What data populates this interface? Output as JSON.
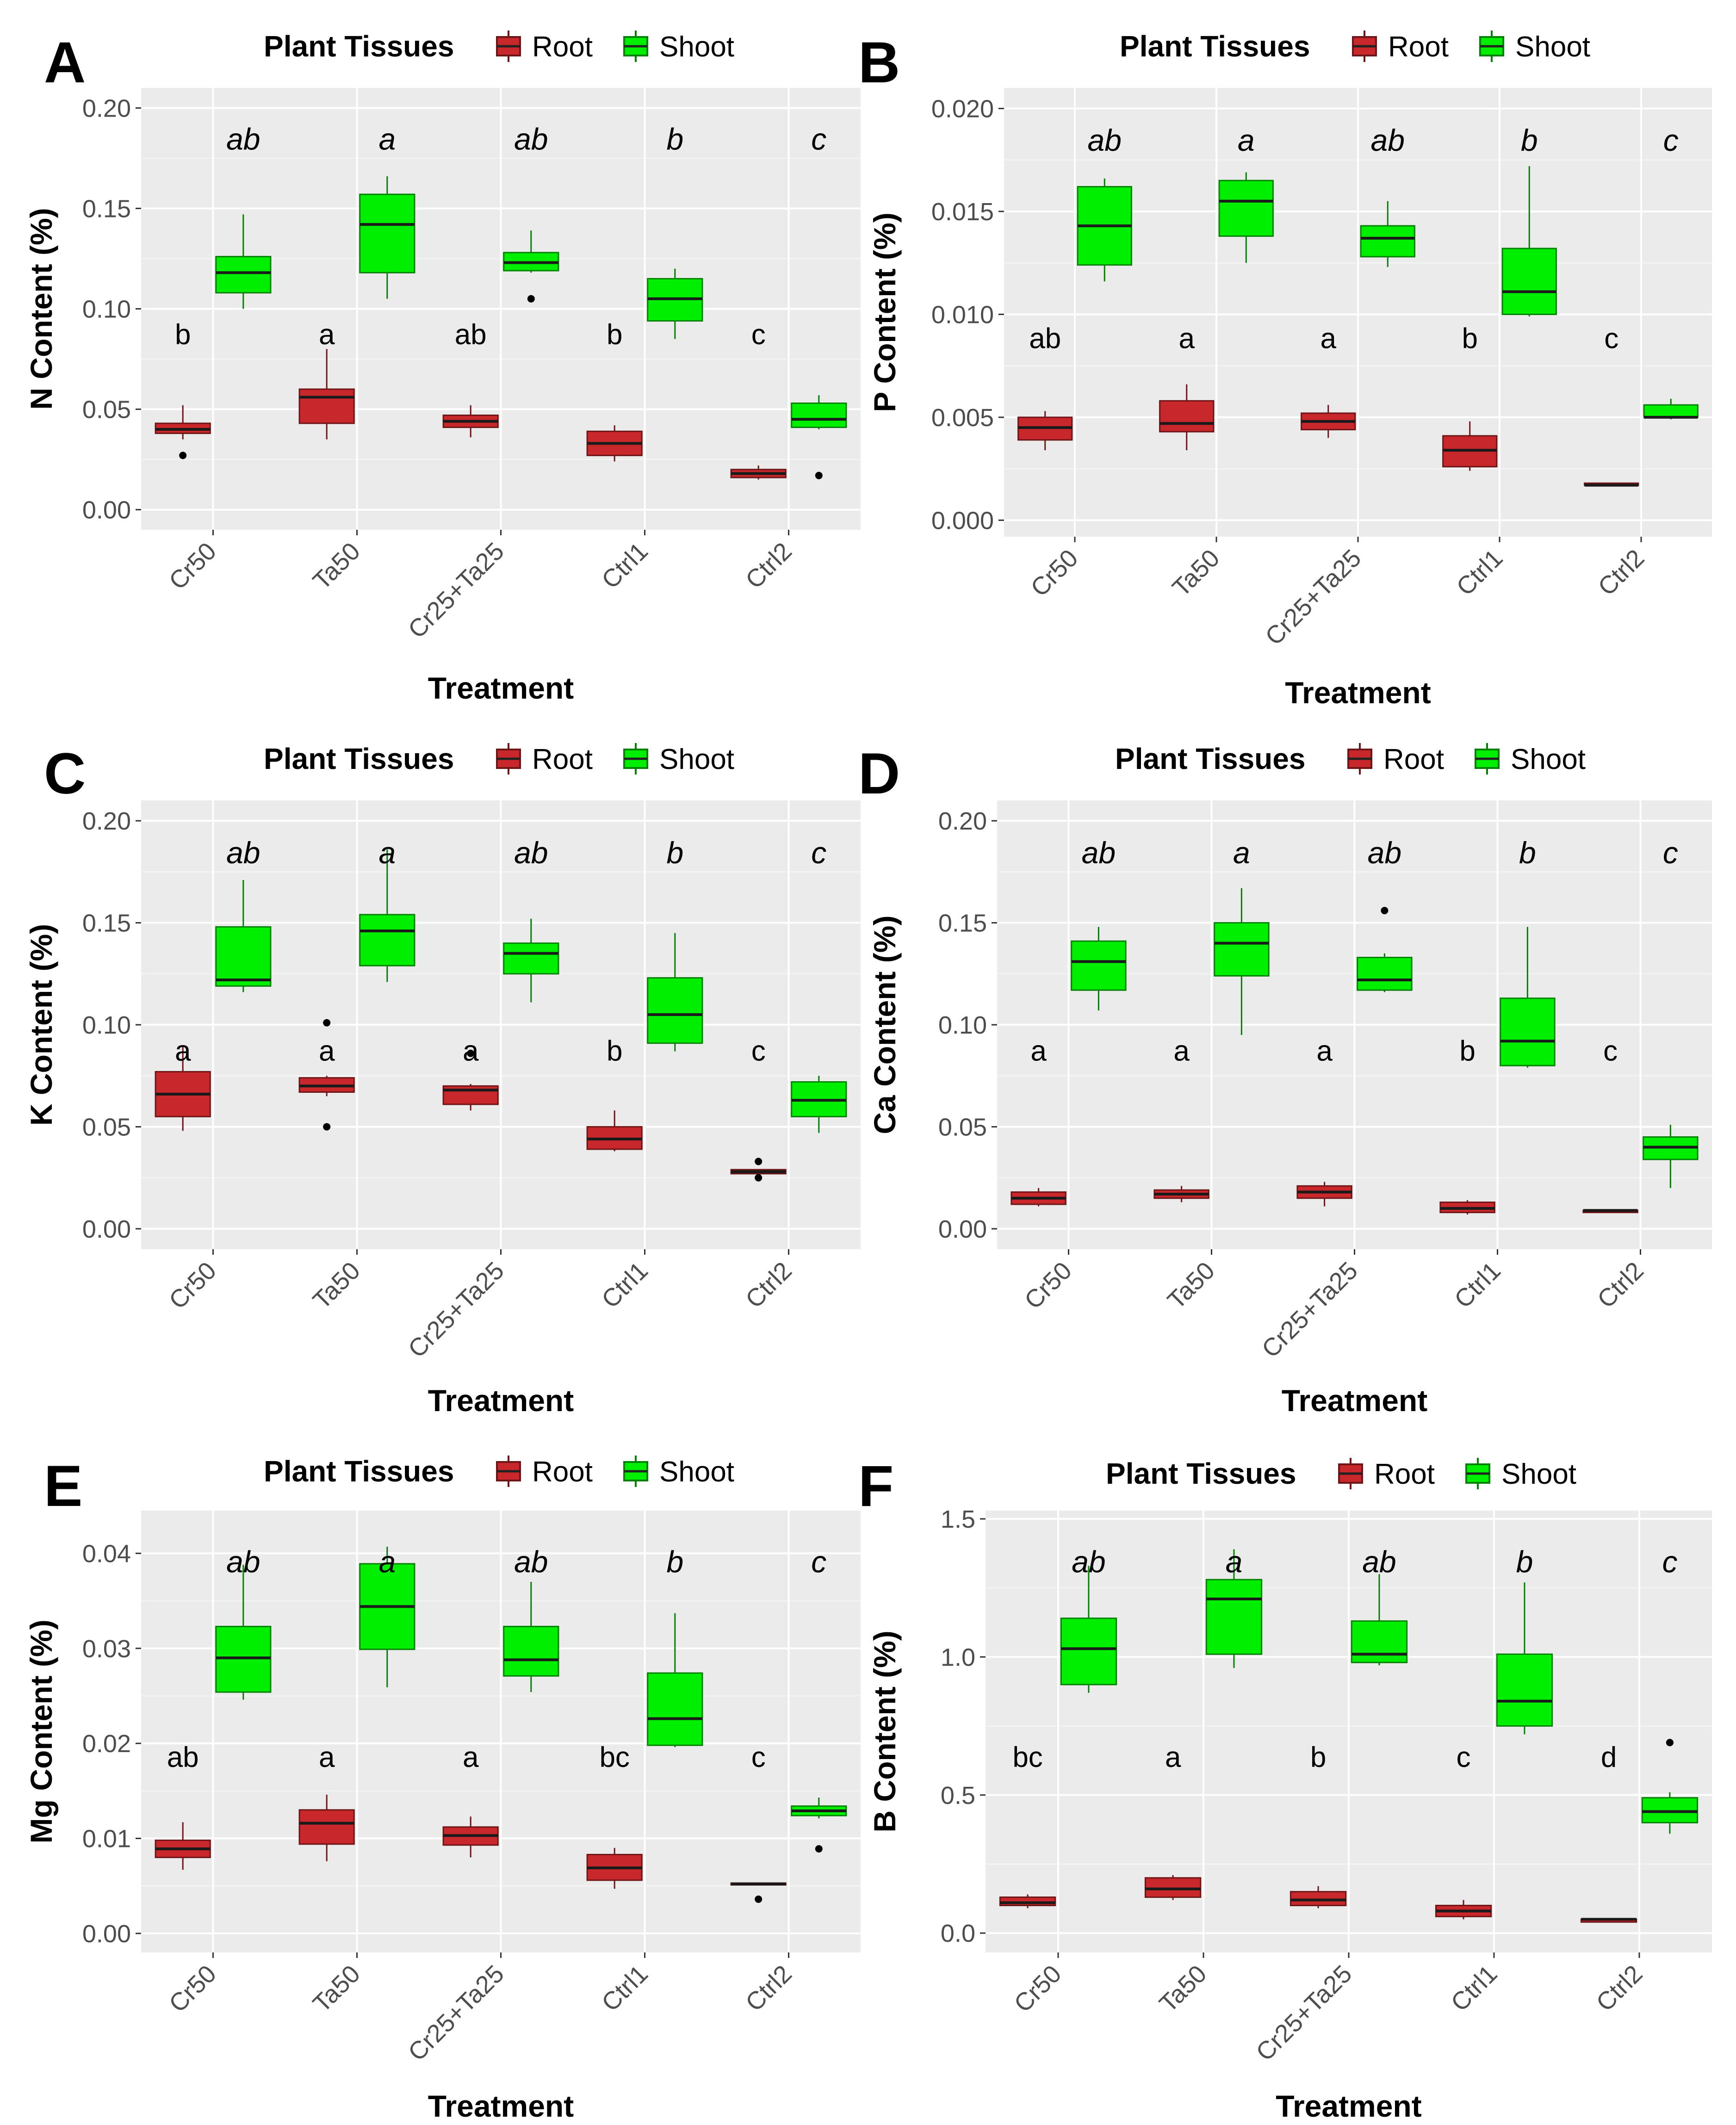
{
  "chart_data": [
    {
      "type": "boxplot",
      "panel": "A",
      "legend": {
        "title": "Plant Tissues",
        "entries": [
          "Root",
          "Shoot"
        ]
      },
      "colors": {
        "Root": "#c8282b",
        "Shoot": "#00ee00"
      },
      "xlabel": "Treatment",
      "ylabel": "N Content (%)",
      "ylim": [
        -0.01,
        0.21
      ],
      "yticks": [
        "0.00",
        "0.05",
        "0.10",
        "0.15",
        "0.20"
      ],
      "categories": [
        "Cr50",
        "Ta50",
        "Cr25+Ta25",
        "Ctrl1",
        "Ctrl2"
      ],
      "series": [
        {
          "name": "Root",
          "sig": [
            "b",
            "a",
            "ab",
            "b",
            "c"
          ],
          "boxes": [
            {
              "min": 0.035,
              "q1": 0.038,
              "median": 0.04,
              "q3": 0.043,
              "max": 0.052,
              "outliers": [
                0.027
              ]
            },
            {
              "min": 0.035,
              "q1": 0.043,
              "median": 0.056,
              "q3": 0.06,
              "max": 0.08,
              "outliers": []
            },
            {
              "min": 0.036,
              "q1": 0.041,
              "median": 0.044,
              "q3": 0.047,
              "max": 0.052,
              "outliers": []
            },
            {
              "min": 0.024,
              "q1": 0.027,
              "median": 0.033,
              "q3": 0.039,
              "max": 0.042,
              "outliers": []
            },
            {
              "min": 0.015,
              "q1": 0.016,
              "median": 0.018,
              "q3": 0.02,
              "max": 0.022,
              "outliers": []
            }
          ]
        },
        {
          "name": "Shoot",
          "sig": [
            "ab",
            "a",
            "ab",
            "b",
            "c"
          ],
          "boxes": [
            {
              "min": 0.1,
              "q1": 0.108,
              "median": 0.118,
              "q3": 0.126,
              "max": 0.147,
              "outliers": []
            },
            {
              "min": 0.105,
              "q1": 0.118,
              "median": 0.142,
              "q3": 0.157,
              "max": 0.166,
              "outliers": []
            },
            {
              "min": 0.118,
              "q1": 0.119,
              "median": 0.123,
              "q3": 0.128,
              "max": 0.139,
              "outliers": [
                0.105
              ]
            },
            {
              "min": 0.085,
              "q1": 0.094,
              "median": 0.105,
              "q3": 0.115,
              "max": 0.12,
              "outliers": []
            },
            {
              "min": 0.04,
              "q1": 0.041,
              "median": 0.045,
              "q3": 0.053,
              "max": 0.057,
              "outliers": [
                0.017
              ]
            }
          ]
        }
      ]
    },
    {
      "type": "boxplot",
      "panel": "B",
      "legend": {
        "title": "Plant Tissues",
        "entries": [
          "Root",
          "Shoot"
        ]
      },
      "colors": {
        "Root": "#c8282b",
        "Shoot": "#00ee00"
      },
      "xlabel": "Treatment",
      "ylabel": "P Content (%)",
      "ylim": [
        -0.0008,
        0.021
      ],
      "yticks": [
        "0.000",
        "0.005",
        "0.010",
        "0.015",
        "0.020"
      ],
      "categories": [
        "Cr50",
        "Ta50",
        "Cr25+Ta25",
        "Ctrl1",
        "Ctrl2"
      ],
      "series": [
        {
          "name": "Root",
          "sig": [
            "ab",
            "a",
            "a",
            "b",
            "c"
          ],
          "boxes": [
            {
              "min": 0.0034,
              "q1": 0.0039,
              "median": 0.0045,
              "q3": 0.005,
              "max": 0.0053,
              "outliers": []
            },
            {
              "min": 0.0034,
              "q1": 0.0043,
              "median": 0.0047,
              "q3": 0.0058,
              "max": 0.0066,
              "outliers": []
            },
            {
              "min": 0.004,
              "q1": 0.0044,
              "median": 0.0048,
              "q3": 0.0052,
              "max": 0.0056,
              "outliers": []
            },
            {
              "min": 0.0024,
              "q1": 0.0026,
              "median": 0.0034,
              "q3": 0.0041,
              "max": 0.0048,
              "outliers": []
            },
            {
              "min": 0.0017,
              "q1": 0.0017,
              "median": 0.0017,
              "q3": 0.0018,
              "max": 0.0018,
              "outliers": []
            }
          ]
        },
        {
          "name": "Shoot",
          "sig": [
            "ab",
            "a",
            "ab",
            "b",
            "c"
          ],
          "boxes": [
            {
              "min": 0.0116,
              "q1": 0.0124,
              "median": 0.0143,
              "q3": 0.0162,
              "max": 0.0166,
              "outliers": []
            },
            {
              "min": 0.0125,
              "q1": 0.0138,
              "median": 0.0155,
              "q3": 0.0165,
              "max": 0.0169,
              "outliers": []
            },
            {
              "min": 0.0123,
              "q1": 0.0128,
              "median": 0.0137,
              "q3": 0.0143,
              "max": 0.0155,
              "outliers": []
            },
            {
              "min": 0.0099,
              "q1": 0.01,
              "median": 0.0111,
              "q3": 0.0132,
              "max": 0.0172,
              "outliers": []
            },
            {
              "min": 0.0049,
              "q1": 0.005,
              "median": 0.005,
              "q3": 0.0056,
              "max": 0.0059,
              "outliers": []
            }
          ]
        }
      ]
    },
    {
      "type": "boxplot",
      "panel": "C",
      "legend": {
        "title": "Plant Tissues",
        "entries": [
          "Root",
          "Shoot"
        ]
      },
      "colors": {
        "Root": "#c8282b",
        "Shoot": "#00ee00"
      },
      "xlabel": "Treatment",
      "ylabel": "K Content (%)",
      "ylim": [
        -0.01,
        0.21
      ],
      "yticks": [
        "0.00",
        "0.05",
        "0.10",
        "0.15",
        "0.20"
      ],
      "categories": [
        "Cr50",
        "Ta50",
        "Cr25+Ta25",
        "Ctrl1",
        "Ctrl2"
      ],
      "series": [
        {
          "name": "Root",
          "sig": [
            "a",
            "a",
            "a",
            "b",
            "c"
          ],
          "boxes": [
            {
              "min": 0.048,
              "q1": 0.055,
              "median": 0.066,
              "q3": 0.077,
              "max": 0.09,
              "outliers": []
            },
            {
              "min": 0.065,
              "q1": 0.067,
              "median": 0.07,
              "q3": 0.074,
              "max": 0.075,
              "outliers": [
                0.101,
                0.05
              ]
            },
            {
              "min": 0.058,
              "q1": 0.061,
              "median": 0.068,
              "q3": 0.07,
              "max": 0.071,
              "outliers": [
                0.086
              ]
            },
            {
              "min": 0.038,
              "q1": 0.039,
              "median": 0.044,
              "q3": 0.05,
              "max": 0.058,
              "outliers": []
            },
            {
              "min": 0.027,
              "q1": 0.027,
              "median": 0.028,
              "q3": 0.029,
              "max": 0.029,
              "outliers": [
                0.033,
                0.025
              ]
            }
          ]
        },
        {
          "name": "Shoot",
          "sig": [
            "ab",
            "a",
            "ab",
            "b",
            "c"
          ],
          "boxes": [
            {
              "min": 0.116,
              "q1": 0.119,
              "median": 0.122,
              "q3": 0.148,
              "max": 0.171,
              "outliers": []
            },
            {
              "min": 0.121,
              "q1": 0.129,
              "median": 0.146,
              "q3": 0.154,
              "max": 0.186,
              "outliers": []
            },
            {
              "min": 0.111,
              "q1": 0.125,
              "median": 0.135,
              "q3": 0.14,
              "max": 0.152,
              "outliers": []
            },
            {
              "min": 0.087,
              "q1": 0.091,
              "median": 0.105,
              "q3": 0.123,
              "max": 0.145,
              "outliers": []
            },
            {
              "min": 0.047,
              "q1": 0.055,
              "median": 0.063,
              "q3": 0.072,
              "max": 0.075,
              "outliers": []
            }
          ]
        }
      ]
    },
    {
      "type": "boxplot",
      "panel": "D",
      "legend": {
        "title": "Plant Tissues",
        "entries": [
          "Root",
          "Shoot"
        ]
      },
      "colors": {
        "Root": "#c8282b",
        "Shoot": "#00ee00"
      },
      "xlabel": "Treatment",
      "ylabel": "Ca Content (%)",
      "ylim": [
        -0.01,
        0.21
      ],
      "yticks": [
        "0.00",
        "0.05",
        "0.10",
        "0.15",
        "0.20"
      ],
      "categories": [
        "Cr50",
        "Ta50",
        "Cr25+Ta25",
        "Ctrl1",
        "Ctrl2"
      ],
      "series": [
        {
          "name": "Root",
          "sig": [
            "a",
            "a",
            "a",
            "b",
            "c"
          ],
          "boxes": [
            {
              "min": 0.011,
              "q1": 0.012,
              "median": 0.015,
              "q3": 0.018,
              "max": 0.02,
              "outliers": []
            },
            {
              "min": 0.013,
              "q1": 0.015,
              "median": 0.017,
              "q3": 0.019,
              "max": 0.021,
              "outliers": []
            },
            {
              "min": 0.011,
              "q1": 0.015,
              "median": 0.018,
              "q3": 0.021,
              "max": 0.023,
              "outliers": []
            },
            {
              "min": 0.007,
              "q1": 0.008,
              "median": 0.01,
              "q3": 0.013,
              "max": 0.014,
              "outliers": []
            },
            {
              "min": 0.008,
              "q1": 0.008,
              "median": 0.009,
              "q3": 0.009,
              "max": 0.009,
              "outliers": []
            }
          ]
        },
        {
          "name": "Shoot",
          "sig": [
            "ab",
            "a",
            "ab",
            "b",
            "c"
          ],
          "boxes": [
            {
              "min": 0.107,
              "q1": 0.117,
              "median": 0.131,
              "q3": 0.141,
              "max": 0.148,
              "outliers": []
            },
            {
              "min": 0.095,
              "q1": 0.124,
              "median": 0.14,
              "q3": 0.15,
              "max": 0.167,
              "outliers": []
            },
            {
              "min": 0.116,
              "q1": 0.117,
              "median": 0.122,
              "q3": 0.133,
              "max": 0.135,
              "outliers": [
                0.156
              ]
            },
            {
              "min": 0.079,
              "q1": 0.08,
              "median": 0.092,
              "q3": 0.113,
              "max": 0.148,
              "outliers": []
            },
            {
              "min": 0.02,
              "q1": 0.034,
              "median": 0.04,
              "q3": 0.045,
              "max": 0.051,
              "outliers": []
            }
          ]
        }
      ]
    },
    {
      "type": "boxplot",
      "panel": "E",
      "legend": {
        "title": "Plant Tissues",
        "entries": [
          "Root",
          "Shoot"
        ]
      },
      "colors": {
        "Root": "#c8282b",
        "Shoot": "#00ee00"
      },
      "xlabel": "Treatment",
      "ylabel": "Mg Content (%)",
      "ylim": [
        -0.002,
        0.0445
      ],
      "yticks": [
        "0.00",
        "0.01",
        "0.02",
        "0.03",
        "0.04"
      ],
      "categories": [
        "Cr50",
        "Ta50",
        "Cr25+Ta25",
        "Ctrl1",
        "Ctrl2"
      ],
      "series": [
        {
          "name": "Root",
          "sig": [
            "ab",
            "a",
            "a",
            "bc",
            "c"
          ],
          "boxes": [
            {
              "min": 0.0067,
              "q1": 0.008,
              "median": 0.0089,
              "q3": 0.0098,
              "max": 0.0117,
              "outliers": []
            },
            {
              "min": 0.0076,
              "q1": 0.0094,
              "median": 0.0116,
              "q3": 0.013,
              "max": 0.0146,
              "outliers": []
            },
            {
              "min": 0.008,
              "q1": 0.0093,
              "median": 0.0103,
              "q3": 0.0112,
              "max": 0.0123,
              "outliers": []
            },
            {
              "min": 0.0047,
              "q1": 0.0056,
              "median": 0.0069,
              "q3": 0.0083,
              "max": 0.009,
              "outliers": []
            },
            {
              "min": 0.0052,
              "q1": 0.0052,
              "median": 0.0052,
              "q3": 0.0053,
              "max": 0.0053,
              "outliers": [
                0.0036
              ]
            }
          ]
        },
        {
          "name": "Shoot",
          "sig": [
            "ab",
            "a",
            "ab",
            "b",
            "c"
          ],
          "boxes": [
            {
              "min": 0.0246,
              "q1": 0.0254,
              "median": 0.029,
              "q3": 0.0323,
              "max": 0.0388,
              "outliers": []
            },
            {
              "min": 0.0259,
              "q1": 0.0299,
              "median": 0.0344,
              "q3": 0.0389,
              "max": 0.0407,
              "outliers": []
            },
            {
              "min": 0.0254,
              "q1": 0.0271,
              "median": 0.0288,
              "q3": 0.0323,
              "max": 0.037,
              "outliers": []
            },
            {
              "min": 0.0196,
              "q1": 0.0198,
              "median": 0.0226,
              "q3": 0.0274,
              "max": 0.0337,
              "outliers": []
            },
            {
              "min": 0.0121,
              "q1": 0.0124,
              "median": 0.0129,
              "q3": 0.0134,
              "max": 0.0143,
              "outliers": [
                0.0089
              ]
            }
          ]
        }
      ]
    },
    {
      "type": "boxplot",
      "panel": "F",
      "legend": {
        "title": "Plant Tissues",
        "entries": [
          "Root",
          "Shoot"
        ]
      },
      "colors": {
        "Root": "#c8282b",
        "Shoot": "#00ee00"
      },
      "xlabel": "Treatment",
      "ylabel": "B Content (%)",
      "ylim": [
        -0.07,
        1.53
      ],
      "yticks": [
        "0.0",
        "0.5",
        "1.0",
        "1.5"
      ],
      "categories": [
        "Cr50",
        "Ta50",
        "Cr25+Ta25",
        "Ctrl1",
        "Ctrl2"
      ],
      "series": [
        {
          "name": "Root",
          "sig": [
            "bc",
            "a",
            "b",
            "c",
            "d"
          ],
          "boxes": [
            {
              "min": 0.09,
              "q1": 0.1,
              "median": 0.11,
              "q3": 0.13,
              "max": 0.14,
              "outliers": []
            },
            {
              "min": 0.12,
              "q1": 0.13,
              "median": 0.16,
              "q3": 0.2,
              "max": 0.21,
              "outliers": []
            },
            {
              "min": 0.09,
              "q1": 0.1,
              "median": 0.12,
              "q3": 0.15,
              "max": 0.17,
              "outliers": []
            },
            {
              "min": 0.05,
              "q1": 0.06,
              "median": 0.08,
              "q3": 0.1,
              "max": 0.12,
              "outliers": []
            },
            {
              "min": 0.04,
              "q1": 0.04,
              "median": 0.05,
              "q3": 0.05,
              "max": 0.05,
              "outliers": []
            }
          ]
        },
        {
          "name": "Shoot",
          "sig": [
            "ab",
            "a",
            "ab",
            "b",
            "c"
          ],
          "boxes": [
            {
              "min": 0.87,
              "q1": 0.9,
              "median": 1.03,
              "q3": 1.14,
              "max": 1.33,
              "outliers": []
            },
            {
              "min": 0.96,
              "q1": 1.01,
              "median": 1.21,
              "q3": 1.28,
              "max": 1.39,
              "outliers": []
            },
            {
              "min": 0.97,
              "q1": 0.98,
              "median": 1.01,
              "q3": 1.13,
              "max": 1.3,
              "outliers": []
            },
            {
              "min": 0.72,
              "q1": 0.75,
              "median": 0.84,
              "q3": 1.01,
              "max": 1.27,
              "outliers": []
            },
            {
              "min": 0.36,
              "q1": 0.4,
              "median": 0.44,
              "q3": 0.49,
              "max": 0.51,
              "outliers": [
                0.69
              ]
            }
          ]
        }
      ]
    }
  ]
}
